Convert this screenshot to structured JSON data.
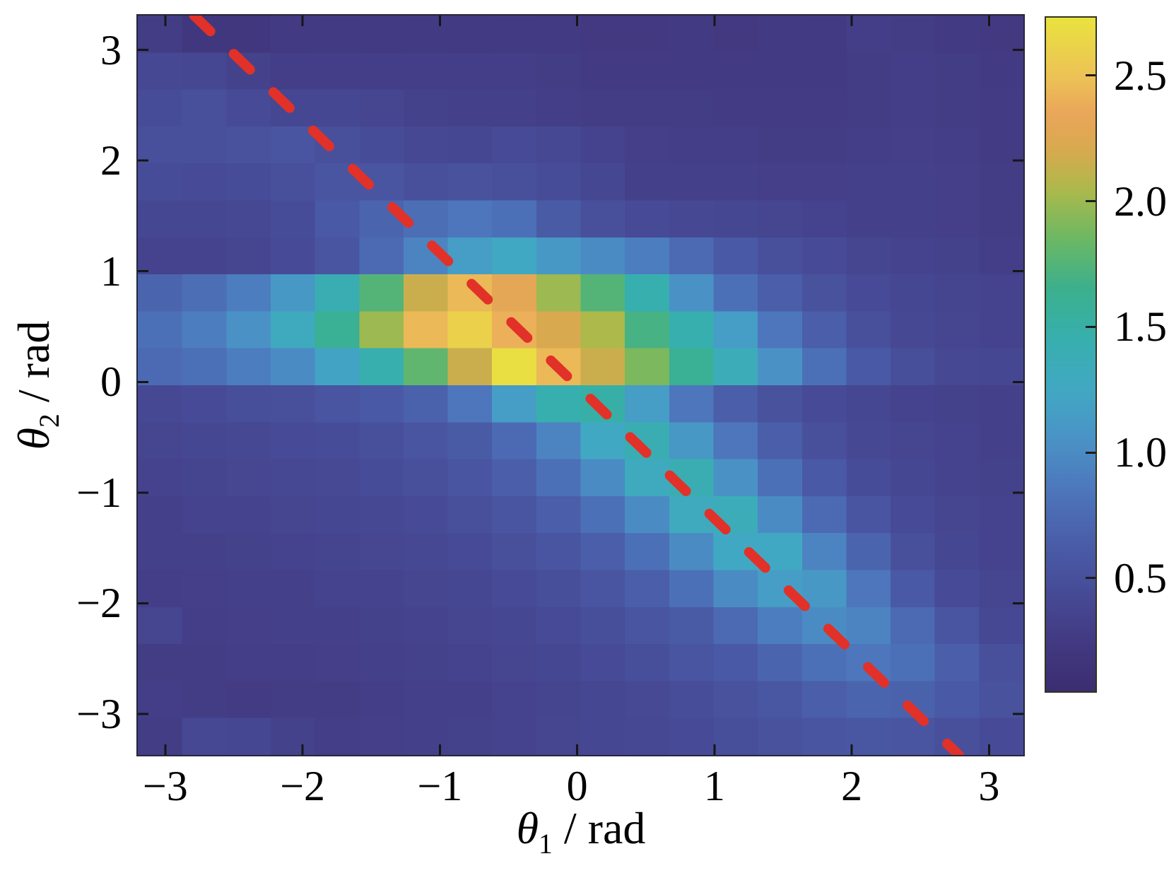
{
  "figure": {
    "xlabel_theta": "θ",
    "xlabel_sub": "1",
    "xlabel_rest": " / rad",
    "ylabel_theta": "θ",
    "ylabel_sub": "2",
    "ylabel_rest": " / rad"
  },
  "chart_data": {
    "type": "heatmap",
    "title": "",
    "xlabel": "theta_1 / rad",
    "ylabel": "theta_2 / rad",
    "xlim": [
      -3.2,
      3.25
    ],
    "ylim": [
      -3.37,
      3.31
    ],
    "grid": false,
    "x_tick_values": [
      -3,
      -2,
      -1,
      0,
      1,
      2,
      3
    ],
    "x_tick_labels": [
      "−3",
      "−2",
      "−1",
      "0",
      "1",
      "2",
      "3"
    ],
    "y_tick_values": [
      3,
      2,
      1,
      0,
      -1,
      -2,
      -3
    ],
    "y_tick_labels": [
      "3",
      "2",
      "1",
      "0",
      "−1",
      "−2",
      "−3"
    ],
    "n_bins_x": 20,
    "n_bins_y": 20,
    "values_row_order": "top_to_bottom",
    "values": [
      [
        0.28,
        0.2,
        0.2,
        0.25,
        0.26,
        0.25,
        0.26,
        0.25,
        0.26,
        0.25,
        0.24,
        0.24,
        0.25,
        0.24,
        0.25,
        0.26,
        0.3,
        0.28,
        0.25,
        0.24
      ],
      [
        0.42,
        0.4,
        0.34,
        0.3,
        0.3,
        0.3,
        0.3,
        0.3,
        0.3,
        0.28,
        0.26,
        0.26,
        0.26,
        0.26,
        0.26,
        0.26,
        0.28,
        0.3,
        0.28,
        0.26
      ],
      [
        0.46,
        0.5,
        0.44,
        0.4,
        0.4,
        0.38,
        0.34,
        0.33,
        0.32,
        0.3,
        0.28,
        0.28,
        0.28,
        0.27,
        0.27,
        0.27,
        0.28,
        0.3,
        0.29,
        0.27
      ],
      [
        0.5,
        0.5,
        0.52,
        0.55,
        0.5,
        0.46,
        0.42,
        0.4,
        0.44,
        0.42,
        0.35,
        0.31,
        0.3,
        0.3,
        0.29,
        0.29,
        0.3,
        0.31,
        0.3,
        0.27
      ],
      [
        0.46,
        0.45,
        0.46,
        0.5,
        0.55,
        0.55,
        0.5,
        0.52,
        0.5,
        0.46,
        0.4,
        0.33,
        0.32,
        0.32,
        0.31,
        0.31,
        0.32,
        0.33,
        0.31,
        0.28
      ],
      [
        0.4,
        0.4,
        0.42,
        0.46,
        0.6,
        0.7,
        0.78,
        0.85,
        0.8,
        0.62,
        0.5,
        0.45,
        0.42,
        0.4,
        0.38,
        0.35,
        0.33,
        0.33,
        0.31,
        0.29
      ],
      [
        0.36,
        0.36,
        0.38,
        0.45,
        0.55,
        0.75,
        0.95,
        1.15,
        1.25,
        1.1,
        1.0,
        0.9,
        0.75,
        0.6,
        0.5,
        0.45,
        0.38,
        0.36,
        0.34,
        0.3
      ],
      [
        0.7,
        0.78,
        0.9,
        1.1,
        1.4,
        1.75,
        2.15,
        2.45,
        2.3,
        2.0,
        1.75,
        1.45,
        1.05,
        0.8,
        0.65,
        0.52,
        0.44,
        0.4,
        0.37,
        0.35
      ],
      [
        0.8,
        0.9,
        1.05,
        1.3,
        1.6,
        2.0,
        2.45,
        2.6,
        2.4,
        2.2,
        2.05,
        1.7,
        1.45,
        1.15,
        0.85,
        0.65,
        0.5,
        0.42,
        0.38,
        0.36
      ],
      [
        0.75,
        0.8,
        0.9,
        1.0,
        1.2,
        1.45,
        1.8,
        2.15,
        2.7,
        2.45,
        2.15,
        1.9,
        1.6,
        1.35,
        1.05,
        0.8,
        0.6,
        0.48,
        0.42,
        0.4
      ],
      [
        0.42,
        0.45,
        0.48,
        0.5,
        0.55,
        0.6,
        0.68,
        0.85,
        1.15,
        1.45,
        1.5,
        1.15,
        0.85,
        0.65,
        0.52,
        0.44,
        0.4,
        0.36,
        0.34,
        0.32
      ],
      [
        0.38,
        0.4,
        0.42,
        0.44,
        0.46,
        0.5,
        0.55,
        0.62,
        0.75,
        0.95,
        1.25,
        1.4,
        1.1,
        0.85,
        0.65,
        0.5,
        0.42,
        0.38,
        0.35,
        0.33
      ],
      [
        0.35,
        0.37,
        0.39,
        0.41,
        0.43,
        0.46,
        0.5,
        0.55,
        0.65,
        0.8,
        1.0,
        1.3,
        1.4,
        1.05,
        0.8,
        0.6,
        0.46,
        0.4,
        0.36,
        0.34
      ],
      [
        0.33,
        0.35,
        0.36,
        0.38,
        0.4,
        0.42,
        0.45,
        0.5,
        0.55,
        0.65,
        0.8,
        1.0,
        1.3,
        1.35,
        1.0,
        0.75,
        0.55,
        0.44,
        0.38,
        0.35
      ],
      [
        0.32,
        0.33,
        0.34,
        0.35,
        0.37,
        0.39,
        0.42,
        0.45,
        0.5,
        0.55,
        0.65,
        0.8,
        1.0,
        1.25,
        1.25,
        0.95,
        0.7,
        0.5,
        0.4,
        0.36
      ],
      [
        0.3,
        0.31,
        0.32,
        0.33,
        0.35,
        0.36,
        0.38,
        0.4,
        0.44,
        0.48,
        0.55,
        0.65,
        0.8,
        1.0,
        1.15,
        1.1,
        0.85,
        0.6,
        0.45,
        0.38
      ],
      [
        0.38,
        0.3,
        0.31,
        0.32,
        0.33,
        0.34,
        0.36,
        0.38,
        0.4,
        0.44,
        0.48,
        0.55,
        0.62,
        0.75,
        0.9,
        1.0,
        0.95,
        0.75,
        0.55,
        0.42
      ],
      [
        0.28,
        0.29,
        0.3,
        0.3,
        0.31,
        0.32,
        0.34,
        0.36,
        0.38,
        0.4,
        0.44,
        0.48,
        0.55,
        0.6,
        0.7,
        0.8,
        0.85,
        0.8,
        0.65,
        0.5
      ],
      [
        0.3,
        0.28,
        0.27,
        0.28,
        0.29,
        0.3,
        0.32,
        0.33,
        0.35,
        0.37,
        0.4,
        0.43,
        0.47,
        0.52,
        0.58,
        0.65,
        0.7,
        0.68,
        0.6,
        0.52
      ],
      [
        0.28,
        0.42,
        0.4,
        0.34,
        0.3,
        0.31,
        0.32,
        0.34,
        0.36,
        0.38,
        0.4,
        0.42,
        0.45,
        0.48,
        0.52,
        0.55,
        0.58,
        0.56,
        0.5,
        0.45
      ]
    ],
    "colorbar": {
      "vmin": 0.05,
      "vmax": 2.73,
      "tick_values": [
        2.5,
        2.0,
        1.5,
        1.0,
        0.5
      ],
      "tick_labels": [
        "2.5",
        "2.0",
        "1.5",
        "1.0",
        "0.5"
      ],
      "position": "right"
    },
    "colormap_stops": [
      [
        0.05,
        "#3b2d71"
      ],
      [
        0.25,
        "#423a82"
      ],
      [
        0.45,
        "#474b97"
      ],
      [
        0.65,
        "#4a5ea9"
      ],
      [
        0.85,
        "#4d76bc"
      ],
      [
        1.05,
        "#4a92c6"
      ],
      [
        1.25,
        "#41a8c3"
      ],
      [
        1.45,
        "#37afae"
      ],
      [
        1.65,
        "#3bb08d"
      ],
      [
        1.85,
        "#6cb863"
      ],
      [
        2.05,
        "#adb94b"
      ],
      [
        2.2,
        "#d8a94f"
      ],
      [
        2.35,
        "#eaa65a"
      ],
      [
        2.5,
        "#ecc356"
      ],
      [
        2.73,
        "#e9e23f"
      ]
    ],
    "reference_line": {
      "style": "dashed",
      "color": "#e23128",
      "x1": -2.79,
      "y1": 3.31,
      "x2": 2.78,
      "y2": -3.37
    }
  }
}
